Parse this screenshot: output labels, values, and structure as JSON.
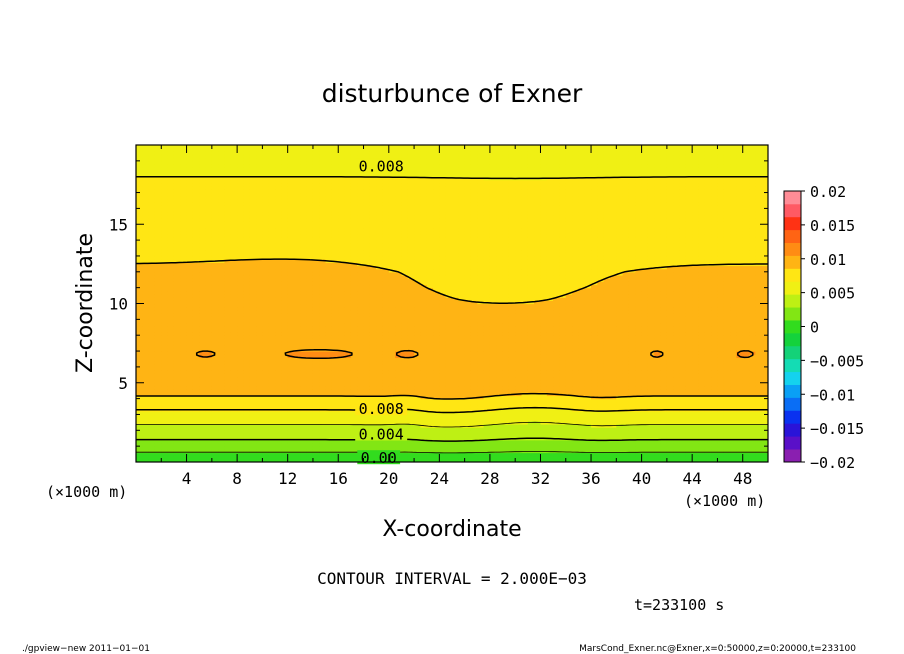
{
  "chart_data": {
    "type": "heatmap",
    "title": "disturbunce of Exner",
    "xlabel": "X-coordinate",
    "ylabel": "Z-coordinate",
    "x_unit_left": "(×1000 m)",
    "x_unit_right": "(×1000 m)",
    "xlim": [
      0,
      50
    ],
    "ylim": [
      0,
      20
    ],
    "xticks": [
      4,
      8,
      12,
      16,
      20,
      24,
      28,
      32,
      36,
      40,
      44,
      48
    ],
    "yticks": [
      5,
      10,
      15
    ],
    "colorbar": {
      "levels": [
        -0.02,
        -0.018,
        -0.016,
        -0.014,
        -0.012,
        -0.01,
        -0.008,
        -0.006,
        -0.004,
        -0.002,
        0,
        0.002,
        0.004,
        0.006,
        0.008,
        0.01,
        0.012,
        0.014,
        0.016,
        0.018,
        0.02
      ],
      "tick_values": [
        0.02,
        0.015,
        0.01,
        0.005,
        0,
        -0.005,
        -0.01,
        -0.015,
        -0.02
      ],
      "tick_labels": [
        "0.02",
        "0.015",
        "0.01",
        "0.005",
        "0",
        "−0.005",
        "−0.01",
        "−0.015",
        "−0.02"
      ],
      "colors": [
        "#8a1fb0",
        "#5a10c8",
        "#2a14d8",
        "#0a32f0",
        "#0a6ef5",
        "#0aa0f5",
        "#14d2ee",
        "#14dcb4",
        "#14d278",
        "#14d23c",
        "#32dc1e",
        "#82e614",
        "#bef014",
        "#f0f014",
        "#ffe614",
        "#ffb414",
        "#ff8c14",
        "#ff6414",
        "#ff3214",
        "#ff5a64",
        "#ff8c96"
      ]
    },
    "profile": {
      "z": [
        0,
        0.3,
        0.7,
        1.1,
        1.5,
        2.0,
        2.5,
        3.0,
        3.5,
        4.0,
        4.5,
        5.0,
        6.0,
        7.0,
        8.0,
        9.0,
        9.6,
        10.2,
        11.0,
        12.0,
        13.0,
        14.0,
        15.0,
        15.8,
        16.5,
        17.5,
        18.5,
        19.5,
        20.0
      ],
      "value": [
        0.0,
        0.0012,
        0.0022,
        0.0033,
        0.0042,
        0.0052,
        0.0063,
        0.0073,
        0.0085,
        0.0097,
        0.0106,
        0.0111,
        0.0114,
        0.0115,
        0.0114,
        0.0112,
        0.0109,
        0.0106,
        0.0104,
        0.0102,
        0.0098,
        0.0095,
        0.0091,
        0.0087,
        0.0084,
        0.0081,
        0.0079,
        0.0077,
        0.0076
      ]
    },
    "contour_labels": [
      {
        "text": "0.008",
        "x": 19.4,
        "z": 18.7
      },
      {
        "text": "0.008",
        "x": 19.4,
        "z": 3.4
      },
      {
        "text": "0.004",
        "x": 19.4,
        "z": 1.8
      },
      {
        "text": "0.00",
        "x": 19.2,
        "z": 0.3
      }
    ],
    "contour_interval_text": "CONTOUR INTERVAL = 2.000E−03",
    "time_text": "t=233100 s"
  },
  "footer": {
    "left": "./gpview−new   2011−01−01",
    "right": "MarsCond_Exner.nc@Exner,x=0:50000,z=0:20000,t=233100"
  }
}
